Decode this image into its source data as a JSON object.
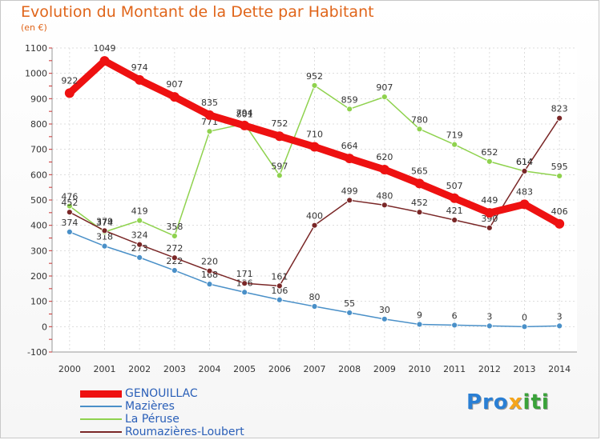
{
  "title": "Evolution du Montant de la Dette par Habitant",
  "subtitle": "(en €)",
  "logo": {
    "parts": [
      "Pro",
      "x",
      "iti"
    ],
    "colors": [
      "#2a7fd4",
      "#f5a51c",
      "#3aa23a"
    ]
  },
  "chart_data": {
    "type": "line",
    "x": [
      "2000",
      "2001",
      "2002",
      "2003",
      "2004",
      "2005",
      "2006",
      "2007",
      "2008",
      "2009",
      "2010",
      "2011",
      "2012",
      "2013",
      "2014"
    ],
    "ylim": [
      -100,
      1100
    ],
    "yticks": [
      "-100",
      "0",
      "100",
      "200",
      "300",
      "400",
      "500",
      "600",
      "700",
      "800",
      "900",
      "1000",
      "1100"
    ],
    "grid": true,
    "legend_position": "bottom-left",
    "series": [
      {
        "name": "Mazières",
        "color": "#4a90c8",
        "values": [
          374,
          318,
          273,
          222,
          168,
          136,
          106,
          80,
          55,
          30,
          9,
          6,
          3,
          0,
          3
        ]
      },
      {
        "name": "La Péruse",
        "color": "#8fd24e",
        "values": [
          476,
          374,
          419,
          358,
          771,
          801,
          597,
          952,
          859,
          907,
          780,
          719,
          652,
          614,
          595
        ]
      },
      {
        "name": "Roumazières-Loubert",
        "color": "#7a2727",
        "values": [
          452,
          379,
          324,
          272,
          220,
          171,
          161,
          400,
          499,
          480,
          452,
          421,
          390,
          614,
          823
        ]
      },
      {
        "name": "GENOUILLAC",
        "color": "#ee1111",
        "values": [
          922,
          1049,
          974,
          907,
          835,
          794,
          752,
          710,
          664,
          620,
          565,
          507,
          449,
          483,
          406
        ]
      }
    ],
    "legend_order": [
      "GENOUILLAC",
      "Mazières",
      "La Péruse",
      "Roumazières-Loubert"
    ]
  }
}
